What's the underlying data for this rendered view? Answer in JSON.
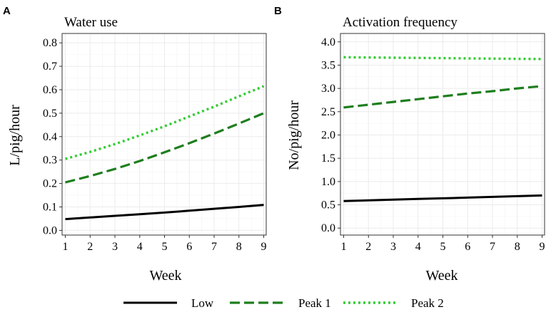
{
  "chart_data": [
    {
      "panel": "A",
      "title": "Water use",
      "type": "line",
      "xlabel": "Week",
      "ylabel": "L/pig/hour",
      "x": [
        1,
        2,
        3,
        4,
        5,
        6,
        7,
        8,
        9
      ],
      "xticks": [
        "1",
        "2",
        "3",
        "4",
        "5",
        "6",
        "7",
        "8",
        "9"
      ],
      "xlim": [
        0.87,
        9.1
      ],
      "ylim": [
        -0.02,
        0.84
      ],
      "yticks": [
        "0.0",
        "0.1",
        "0.2",
        "0.3",
        "0.4",
        "0.5",
        "0.6",
        "0.7",
        "0.8"
      ],
      "series": [
        {
          "name": "Low",
          "values": [
            0.048,
            0.055,
            0.062,
            0.069,
            0.076,
            0.084,
            0.092,
            0.1,
            0.109
          ]
        },
        {
          "name": "Peak 1",
          "values": [
            0.205,
            0.232,
            0.262,
            0.296,
            0.333,
            0.372,
            0.413,
            0.456,
            0.5
          ]
        },
        {
          "name": "Peak 2",
          "values": [
            0.305,
            0.335,
            0.368,
            0.405,
            0.444,
            0.486,
            0.528,
            0.572,
            0.615
          ]
        }
      ]
    },
    {
      "panel": "B",
      "title": "Activation frequency",
      "type": "line",
      "xlabel": "Week",
      "ylabel": "No/pig/hour",
      "x": [
        1,
        2,
        3,
        4,
        5,
        6,
        7,
        8,
        9
      ],
      "xticks": [
        "1",
        "2",
        "3",
        "4",
        "5",
        "6",
        "7",
        "8",
        "9"
      ],
      "xlim": [
        0.87,
        9.1
      ],
      "ylim": [
        -0.15,
        4.18
      ],
      "yticks": [
        "0.0",
        "0.5",
        "1.0",
        "1.5",
        "2.0",
        "2.5",
        "3.0",
        "3.5",
        "4.0"
      ],
      "series": [
        {
          "name": "Low",
          "values": [
            0.58,
            0.595,
            0.61,
            0.625,
            0.64,
            0.655,
            0.67,
            0.685,
            0.7
          ]
        },
        {
          "name": "Peak 1",
          "values": [
            2.59,
            2.65,
            2.71,
            2.77,
            2.83,
            2.89,
            2.94,
            3.0,
            3.05
          ]
        },
        {
          "name": "Peak 2",
          "values": [
            3.67,
            3.665,
            3.66,
            3.655,
            3.65,
            3.645,
            3.64,
            3.635,
            3.63
          ]
        }
      ]
    }
  ],
  "legend": {
    "items": [
      {
        "label": "Low",
        "color": "#000000",
        "dash": "solid"
      },
      {
        "label": "Peak 1",
        "color": "#1e7e1e",
        "dash": "dashed"
      },
      {
        "label": "Peak 2",
        "color": "#33cc33",
        "dash": "dotted"
      }
    ]
  }
}
